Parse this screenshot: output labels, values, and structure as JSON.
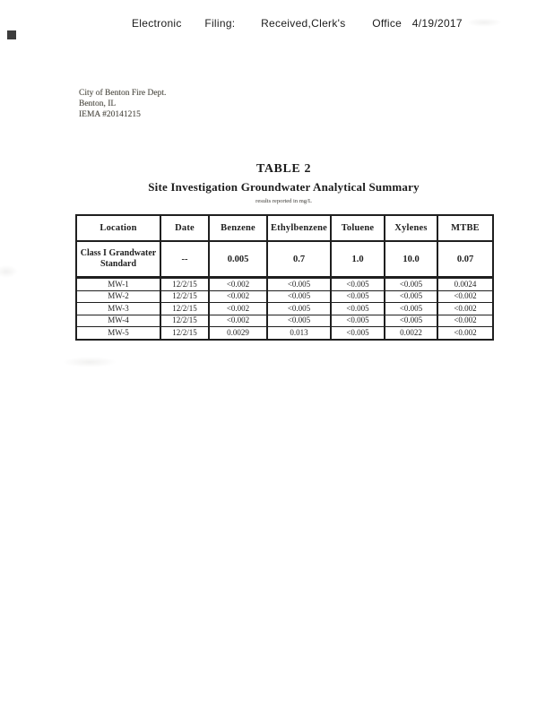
{
  "page": {
    "header_line": {
      "segments": [
        "Electronic",
        "Filing:",
        "Received,Clerk's",
        "Office",
        "4/19/2017"
      ]
    },
    "letterhead": {
      "line1": "City of Benton Fire Dept.",
      "line2": "Benton, IL",
      "line3": "IEMA #20141215"
    },
    "title": "TABLE 2",
    "subtitle": "Site Investigation Groundwater Analytical Summary",
    "units_note": "results reported in mg/L"
  },
  "table": {
    "columns": [
      "Location",
      "Date",
      "Benzene",
      "Ethylbenzene",
      "Toluene",
      "Xylenes",
      "MTBE"
    ],
    "standard_row": {
      "location": "Class I Grandwater Standard",
      "date": "--",
      "values": [
        "0.005",
        "0.7",
        "1.0",
        "10.0",
        "0.07"
      ]
    },
    "rows": [
      {
        "location": "MW-1",
        "date": "12/2/15",
        "values": [
          "<0.002",
          "<0.005",
          "<0.005",
          "<0.005",
          "0.0024"
        ]
      },
      {
        "location": "MW-2",
        "date": "12/2/15",
        "values": [
          "<0.002",
          "<0.005",
          "<0.005",
          "<0.005",
          "<0.002"
        ]
      },
      {
        "location": "MW-3",
        "date": "12/2/15",
        "values": [
          "<0.002",
          "<0.005",
          "<0.005",
          "<0.005",
          "<0.002"
        ]
      },
      {
        "location": "MW-4",
        "date": "12/2/15",
        "values": [
          "<0.002",
          "<0.005",
          "<0.005",
          "<0.005",
          "<0.002"
        ]
      },
      {
        "location": "MW-5",
        "date": "12/2/15",
        "values": [
          "0.0029",
          "0.013",
          "<0.005",
          "0.0022",
          "<0.002"
        ]
      }
    ]
  },
  "colors": {
    "ink": "#1f1f1f",
    "faded_ink": "#55534d",
    "paper": "#ffffff"
  }
}
